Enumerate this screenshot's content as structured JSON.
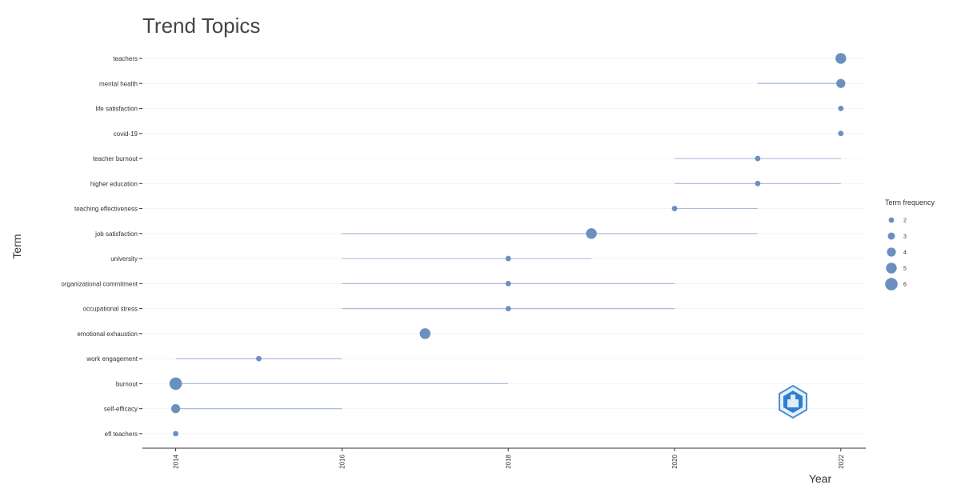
{
  "chart_data": {
    "type": "scatter",
    "title": "Trend Topics",
    "xlabel": "Year",
    "ylabel": "Term",
    "xlim": [
      2013.6,
      2022.3
    ],
    "x_ticks": [
      "2014",
      "2016",
      "2018",
      "2020",
      "2022"
    ],
    "grid": true,
    "legend": {
      "title": "Term frequency",
      "position": "right",
      "entries": [
        "2",
        "3",
        "4",
        "5",
        "6"
      ]
    },
    "point_color": "#6b8fbf",
    "line_color": "#a9bcd9",
    "terms": [
      {
        "term": "teachers",
        "start": 2022,
        "end": 2022,
        "median": 2022,
        "freq": 5
      },
      {
        "term": "mental health",
        "start": 2021,
        "end": 2022,
        "median": 2022,
        "freq": 4
      },
      {
        "term": "life satisfaction",
        "start": 2022,
        "end": 2022,
        "median": 2022,
        "freq": 2
      },
      {
        "term": "covid-19",
        "start": 2022,
        "end": 2022,
        "median": 2022,
        "freq": 2
      },
      {
        "term": "teacher burnout",
        "start": 2020,
        "end": 2022,
        "median": 2021,
        "freq": 2
      },
      {
        "term": "higher education",
        "start": 2020,
        "end": 2022,
        "median": 2021,
        "freq": 2
      },
      {
        "term": "teaching effectiveness",
        "start": 2020,
        "end": 2021,
        "median": 2020,
        "freq": 2
      },
      {
        "term": "job satisfaction",
        "start": 2016,
        "end": 2021,
        "median": 2019,
        "freq": 5
      },
      {
        "term": "university",
        "start": 2016,
        "end": 2019,
        "median": 2018,
        "freq": 2
      },
      {
        "term": "organizational commitment",
        "start": 2016,
        "end": 2020,
        "median": 2018,
        "freq": 2
      },
      {
        "term": "occupational stress",
        "start": 2016,
        "end": 2020,
        "median": 2018,
        "freq": 2
      },
      {
        "term": "emotional exhaustion",
        "start": 2017,
        "end": 2017,
        "median": 2017,
        "freq": 5
      },
      {
        "term": "work engagement",
        "start": 2014,
        "end": 2016,
        "median": 2015,
        "freq": 2
      },
      {
        "term": "burnout",
        "start": 2014,
        "end": 2018,
        "median": 2014,
        "freq": 6
      },
      {
        "term": "self-efficacy",
        "start": 2014,
        "end": 2016,
        "median": 2014,
        "freq": 4
      },
      {
        "term": "efl teachers",
        "start": 2014,
        "end": 2014,
        "median": 2014,
        "freq": 2
      }
    ]
  }
}
